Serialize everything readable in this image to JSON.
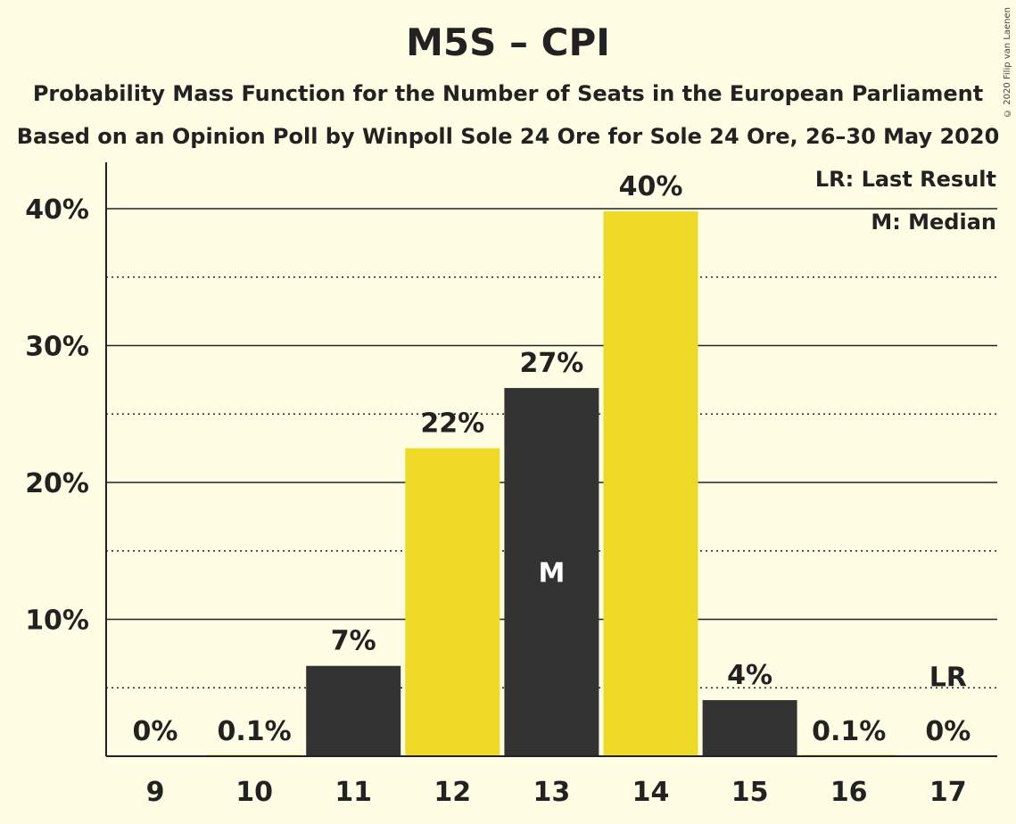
{
  "header": {
    "title": "M5S – CPI",
    "subtitle1": "Probability Mass Function for the Number of Seats in the European Parliament",
    "subtitle2": "Based on an Opinion Poll by Winpoll Sole 24 Ore for Sole 24 Ore, 26–30 May 2020",
    "copyright": "© 2020 Filip van Laenen"
  },
  "legend": {
    "last_result": "LR: Last Result",
    "median": "M: Median"
  },
  "colors": {
    "background": "#FFFDE4",
    "bar_dark": "#333333",
    "bar_yellow": "#EDD926",
    "text": "#222222"
  },
  "chart_data": {
    "type": "bar",
    "categories": [
      "9",
      "10",
      "11",
      "12",
      "13",
      "14",
      "15",
      "16",
      "17"
    ],
    "values": [
      0,
      0.1,
      6.6,
      22.5,
      26.9,
      39.8,
      4.1,
      0.1,
      0
    ],
    "value_labels": [
      "0%",
      "0.1%",
      "7%",
      "22%",
      "27%",
      "40%",
      "4%",
      "0.1%",
      "0%"
    ],
    "bar_colors": [
      "dark",
      "yellow",
      "dark",
      "yellow",
      "dark",
      "yellow",
      "dark",
      "yellow",
      "dark"
    ],
    "median_category": "13",
    "median_marker": "M",
    "last_result_category": "17",
    "last_result_marker": "LR",
    "ylim": [
      0,
      43
    ],
    "y_ticks": [
      10,
      20,
      30,
      40
    ],
    "y_tick_labels": [
      "10%",
      "20%",
      "30%",
      "40%"
    ],
    "minor_gridlines": [
      5,
      15,
      25,
      35
    ],
    "last_result_line": 5
  }
}
